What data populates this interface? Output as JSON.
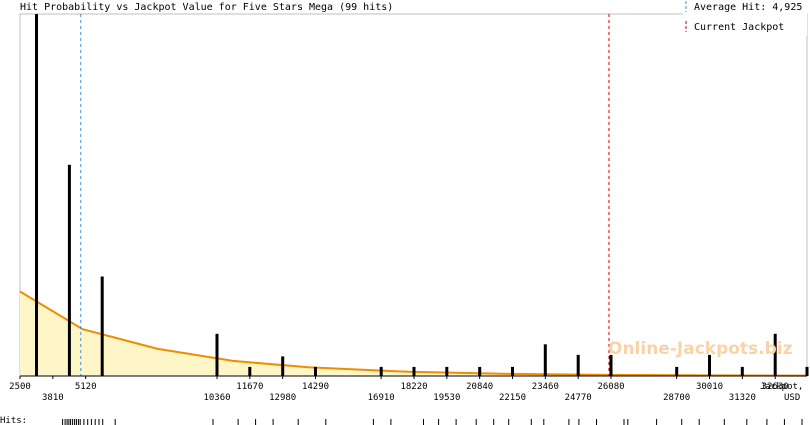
{
  "chart_data": {
    "type": "bar",
    "title": "Hit Probability vs Jackpot Value for Five Stars Mega (99 hits)",
    "xlabel": "Jackpot, USD",
    "xlabel_line1": "Jackpot,",
    "xlabel_line2": "USD",
    "hits_label": "Hits:",
    "xlim": [
      2500,
      33900
    ],
    "ylim": [
      0,
      12
    ],
    "grid": false,
    "legend_placement": "top-right",
    "legend": [
      {
        "label": "Average Hit: 4,925",
        "style": "dashed",
        "color": "#3b8fd9"
      },
      {
        "label": "Current Jackpot",
        "style": "dashed",
        "color": "#cc0000"
      }
    ],
    "average_hit": 4925,
    "current_jackpot": 26000,
    "bar_color": "#000000",
    "curve_color": "#f08c00",
    "fill_color": "#fff6c8",
    "watermark": "Online-Jackpots.biz",
    "tick_labels_upper": [
      2500,
      5120,
      11670,
      14290,
      18220,
      20840,
      23460,
      26080,
      30010,
      32630
    ],
    "tick_labels_lower": [
      3810,
      10360,
      12980,
      16910,
      19530,
      22150,
      24770,
      28700,
      31320
    ],
    "x": [
      3160,
      4470,
      5780,
      10360,
      11670,
      12980,
      14290,
      16910,
      18220,
      19530,
      20840,
      22150,
      23460,
      24770,
      26080,
      28700,
      30010,
      31320,
      32630,
      33900
    ],
    "values": [
      12,
      7,
      3.3,
      1.4,
      0.3,
      0.65,
      0.3,
      0.3,
      0.3,
      0.3,
      0.3,
      0.3,
      1.05,
      0.7,
      0.7,
      0.3,
      0.7,
      0.3,
      1.4,
      0.3
    ],
    "curve": [
      [
        2500,
        2.8
      ],
      [
        5000,
        1.55
      ],
      [
        8000,
        0.9
      ],
      [
        11000,
        0.5
      ],
      [
        14000,
        0.29
      ],
      [
        18000,
        0.14
      ],
      [
        22000,
        0.07
      ],
      [
        26000,
        0.035
      ],
      [
        30000,
        0.02
      ],
      [
        33900,
        0.012
      ]
    ],
    "hit_ticks": [
      4200,
      4300,
      4380,
      4450,
      4520,
      4600,
      4680,
      4750,
      4830,
      4900,
      5050,
      5200,
      5350,
      5500,
      5650,
      5800,
      6300,
      10200,
      11200,
      11900,
      12600,
      13600,
      14700,
      16600,
      17300,
      18600,
      19200,
      19900,
      20700,
      21400,
      22000,
      22900,
      23400,
      24400,
      24800,
      25500,
      26600,
      26750,
      27900,
      28900,
      29600,
      30600,
      31500,
      32300,
      33000,
      33700
    ]
  }
}
